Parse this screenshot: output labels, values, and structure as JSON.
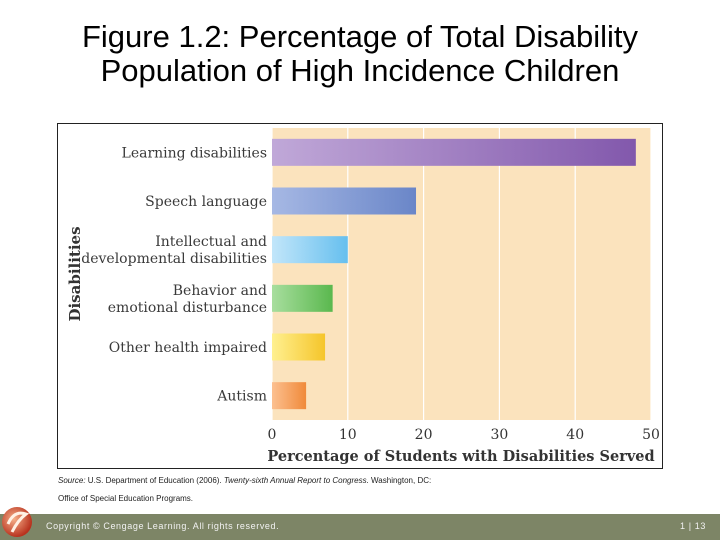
{
  "slide": {
    "title_line1": "Figure 1.2: Percentage of Total Disability",
    "title_line2": "Population of High Incidence Children"
  },
  "source": {
    "label": "Source:",
    "text1": " U.S. Department of Education (2006). ",
    "publication": "Twenty-sixth Annual Report to Congress.",
    "text2": " Washington, DC:",
    "line2": "Office of Special Education Programs."
  },
  "footer": {
    "copyright": "Copyright © Cengage Learning. All rights reserved.",
    "page": "1 | 13"
  },
  "colors": {
    "plot_background": "#fbe3bd",
    "footer_bar": "#7d8566"
  },
  "chart_data": {
    "type": "bar",
    "orientation": "horizontal",
    "categories": [
      [
        "Learning disabilities"
      ],
      [
        "Speech language"
      ],
      [
        "Intellectual and",
        "developmental disabilities"
      ],
      [
        "Behavior and",
        "emotional disturbance"
      ],
      [
        "Other health impaired"
      ],
      [
        "Autism"
      ]
    ],
    "values": [
      48,
      19,
      10,
      8,
      7,
      4.5
    ],
    "bar_colors": [
      [
        "#c0a8d8",
        "#8258ac"
      ],
      [
        "#a6b8e4",
        "#6a86c8"
      ],
      [
        "#c2e6fa",
        "#66bfee"
      ],
      [
        "#a8de9e",
        "#5ab84e"
      ],
      [
        "#fff090",
        "#f5c52a"
      ],
      [
        "#fcc090",
        "#f08a3a"
      ]
    ],
    "xlabel": "Percentage of Students with Disabilities Served",
    "ylabel": "Disabilities",
    "xlim": [
      0,
      50
    ],
    "xticks": [
      0,
      10,
      20,
      30,
      40,
      50
    ],
    "grid": true
  }
}
